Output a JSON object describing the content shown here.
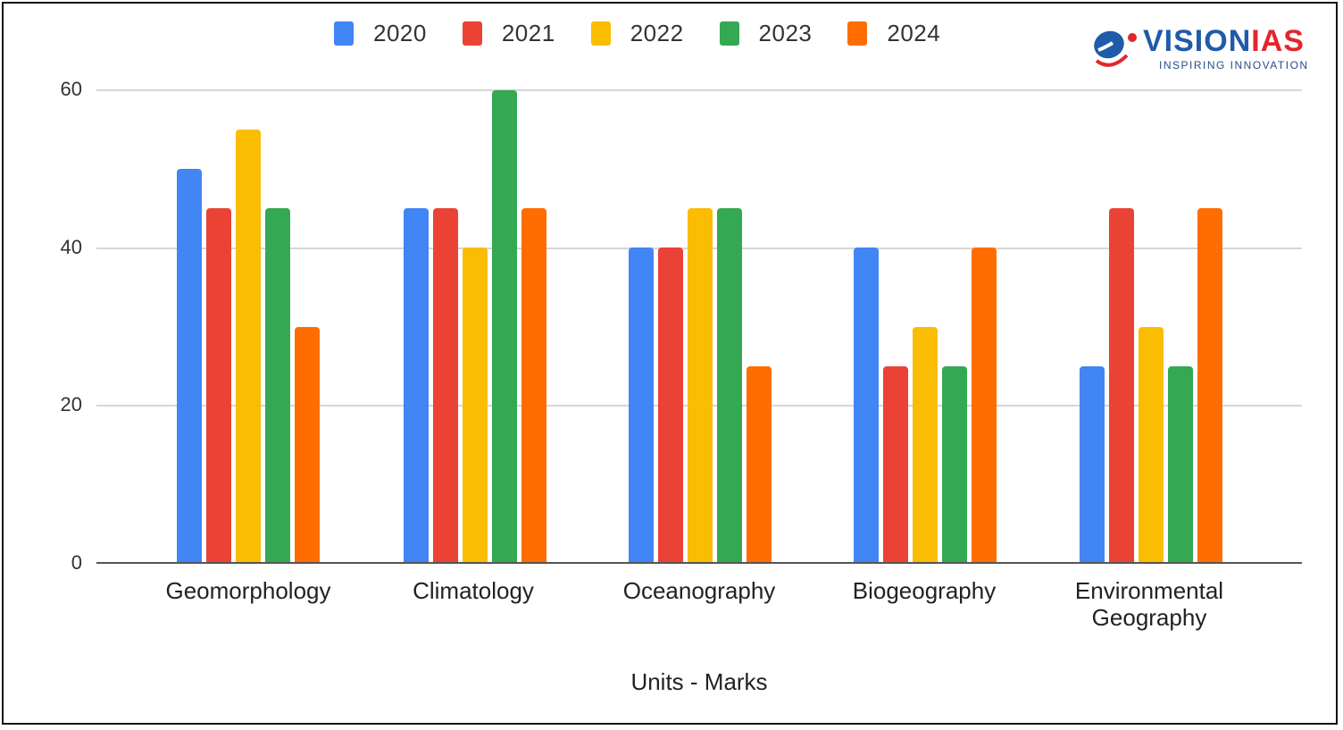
{
  "legend": [
    {
      "label": "2020",
      "color": "#4285f4"
    },
    {
      "label": "2021",
      "color": "#ea4335"
    },
    {
      "label": "2022",
      "color": "#fbbc04"
    },
    {
      "label": "2023",
      "color": "#34a853"
    },
    {
      "label": "2024",
      "color": "#ff6d01"
    }
  ],
  "logo": {
    "brand_a": "VISION",
    "brand_b": "IAS",
    "tagline": "INSPIRING INNOVATION"
  },
  "y_ticks": [
    "0",
    "20",
    "40",
    "60"
  ],
  "x_labels": [
    "Geomorphology",
    "Climatology",
    "Oceanography",
    "Biogeography",
    "Environmental Geography"
  ],
  "x_title": "Units - Marks",
  "chart_data": {
    "type": "bar",
    "title": "",
    "xlabel": "Units - Marks",
    "ylabel": "",
    "ylim": [
      0,
      60
    ],
    "y_ticks": [
      0,
      20,
      40,
      60
    ],
    "grid": true,
    "legend_position": "top",
    "categories": [
      "Geomorphology",
      "Climatology",
      "Oceanography",
      "Biogeography",
      "Environmental Geography"
    ],
    "series": [
      {
        "name": "2020",
        "color": "#4285f4",
        "values": [
          50,
          45,
          40,
          40,
          25
        ]
      },
      {
        "name": "2021",
        "color": "#ea4335",
        "values": [
          45,
          45,
          40,
          25,
          45
        ]
      },
      {
        "name": "2022",
        "color": "#fbbc04",
        "values": [
          55,
          40,
          45,
          30,
          30
        ]
      },
      {
        "name": "2023",
        "color": "#34a853",
        "values": [
          45,
          60,
          45,
          25,
          25
        ]
      },
      {
        "name": "2024",
        "color": "#ff6d01",
        "values": [
          30,
          45,
          25,
          40,
          45
        ]
      }
    ]
  }
}
